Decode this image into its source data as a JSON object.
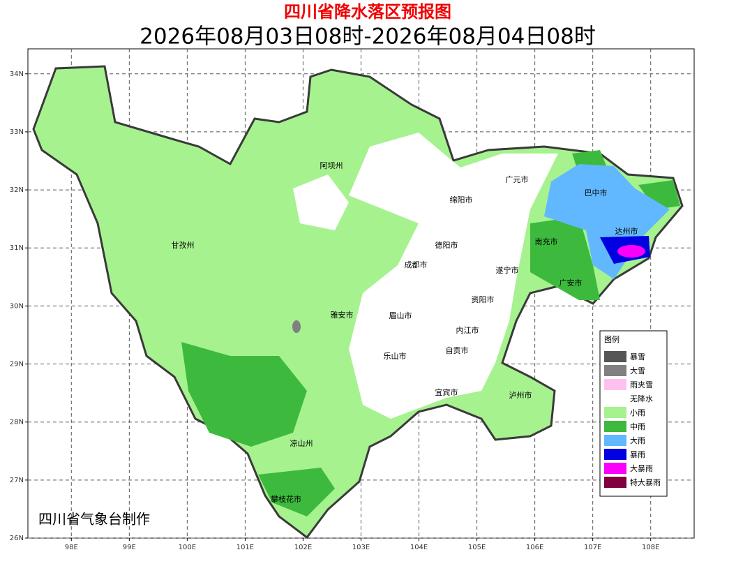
{
  "header": {
    "title": "四川省降水落区预报图",
    "subtitle": "2026年08月03日08时-2026年08月04日08时"
  },
  "map": {
    "xlim": [
      97.25,
      108.75
    ],
    "ylim": [
      26,
      34.43
    ],
    "xticks": [
      {
        "value": 98,
        "label": "98E"
      },
      {
        "value": 99,
        "label": "99E"
      },
      {
        "value": 100,
        "label": "100E"
      },
      {
        "value": 101,
        "label": "101E"
      },
      {
        "value": 102,
        "label": "102E"
      },
      {
        "value": 103,
        "label": "103E"
      },
      {
        "value": 104,
        "label": "104E"
      },
      {
        "value": 105,
        "label": "105E"
      },
      {
        "value": 106,
        "label": "106E"
      },
      {
        "value": 107,
        "label": "107E"
      },
      {
        "value": 108,
        "label": "108E"
      }
    ],
    "yticks": [
      {
        "value": 26,
        "label": "26N"
      },
      {
        "value": 27,
        "label": "27N"
      },
      {
        "value": 28,
        "label": "28N"
      },
      {
        "value": 29,
        "label": "29N"
      },
      {
        "value": 30,
        "label": "30N"
      },
      {
        "value": 31,
        "label": "31N"
      },
      {
        "value": 32,
        "label": "32N"
      },
      {
        "value": 33,
        "label": "33N"
      },
      {
        "value": 34,
        "label": "34N"
      }
    ],
    "grid": true,
    "places": [
      "阿坝州",
      "广元市",
      "巴中市",
      "绵阳市",
      "达州市",
      "甘孜州",
      "南充市",
      "德阳市",
      "成都市",
      "遂宁市",
      "广安市",
      "资阳市",
      "雅安市",
      "眉山市",
      "内江市",
      "自贡市",
      "乐山市",
      "宜宾市",
      "泸州市",
      "凉山州",
      "攀枝花市"
    ]
  },
  "legend": {
    "title": "图例",
    "items": [
      {
        "name": "暴雪",
        "color": "#555555"
      },
      {
        "name": "大雪",
        "color": "#808080"
      },
      {
        "name": "雨夹雪",
        "color": "#ffc0f0"
      },
      {
        "name": "无降水",
        "color": "#ffffff"
      },
      {
        "name": "小雨",
        "color": "#a6f28f"
      },
      {
        "name": "中雨",
        "color": "#3dba3d"
      },
      {
        "name": "大雨",
        "color": "#61b8ff"
      },
      {
        "name": "暴雨",
        "color": "#0000e1"
      },
      {
        "name": "大暴雨",
        "color": "#fa00fa"
      },
      {
        "name": "特大暴雨",
        "color": "#800040"
      }
    ]
  },
  "footer": "四川省气象台制作"
}
